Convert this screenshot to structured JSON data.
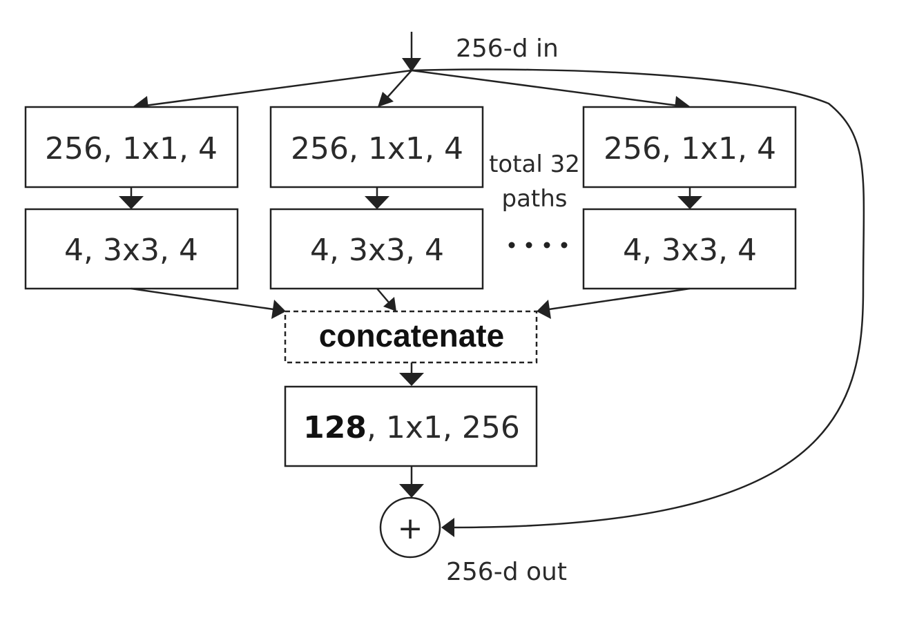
{
  "input_label": "256-d in",
  "output_label": "256-d out",
  "paths_note_line1": "total 32",
  "paths_note_line2": "paths",
  "ellipsis": "....",
  "paths": [
    {
      "layer1": "256, 1x1, 4",
      "layer2": "4, 3x3, 4"
    },
    {
      "layer1": "256, 1x1, 4",
      "layer2": "4, 3x3, 4"
    },
    {
      "layer1": "256, 1x1, 4",
      "layer2": "4, 3x3, 4"
    }
  ],
  "concat_label": "concatenate",
  "final_layer": {
    "bold": "128",
    "rest": ", 1x1, 256"
  },
  "sum_symbol": "+"
}
